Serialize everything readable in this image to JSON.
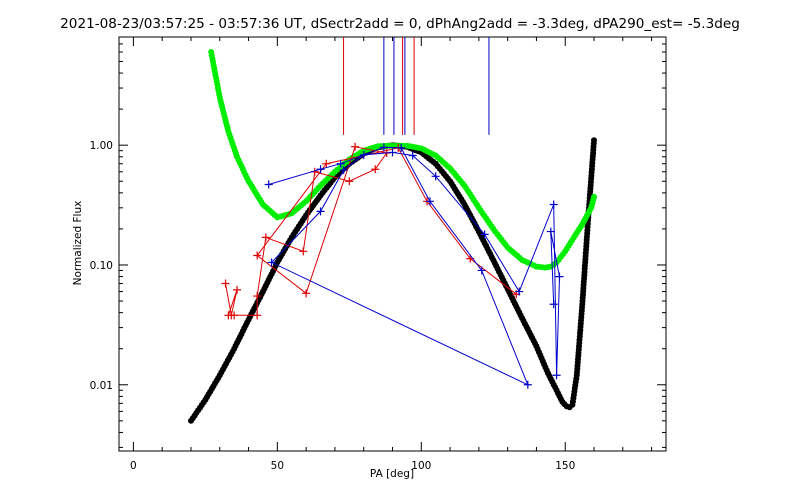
{
  "chart_data": {
    "type": "scatter",
    "title": "2021-08-23/03:57:25 - 03:57:36 UT, dSectr2add = 0, dPhAng2add = -3.3deg, dPA290_est= -5.3deg",
    "xlabel": "PA [deg]",
    "ylabel": "Normalized Flux",
    "x_ticks": [
      0,
      50,
      100,
      150
    ],
    "y_ticks": [
      0.01,
      0.1,
      1.0
    ],
    "y_tick_labels": [
      "0.01",
      "0.10",
      "1.00"
    ],
    "xlim": [
      -5,
      185
    ],
    "ylim": [
      0.0028,
      8
    ],
    "yscale": "log",
    "grid": false,
    "colors": {
      "black": "#000000",
      "green": "#00ee00",
      "red": "#dd0000",
      "blue": "#0000cc"
    },
    "series": [
      {
        "style": "thick-dots",
        "color": "#000000",
        "x": [
          20,
          25,
          30,
          35,
          40,
          45,
          50,
          55,
          60,
          65,
          70,
          75,
          80,
          85,
          90,
          95,
          100,
          105,
          110,
          115,
          120,
          125,
          130,
          135,
          140,
          144,
          147,
          149,
          150.5,
          151.5,
          152.5,
          154,
          156,
          158,
          160
        ],
        "y": [
          0.005,
          0.0075,
          0.012,
          0.02,
          0.035,
          0.06,
          0.105,
          0.17,
          0.26,
          0.38,
          0.54,
          0.7,
          0.85,
          0.96,
          1.0,
          0.97,
          0.87,
          0.7,
          0.5,
          0.32,
          0.19,
          0.11,
          0.063,
          0.036,
          0.021,
          0.0125,
          0.009,
          0.0072,
          0.0066,
          0.0065,
          0.0068,
          0.012,
          0.05,
          0.25,
          1.1
        ]
      },
      {
        "style": "thick-dots",
        "color": "#00ee00",
        "x": [
          27,
          30,
          33,
          36,
          40,
          45,
          50,
          55,
          60,
          65,
          70,
          75,
          80,
          85,
          90,
          95,
          100,
          105,
          110,
          115,
          120,
          125,
          130,
          135,
          140,
          143,
          145,
          147,
          150,
          153,
          156,
          159,
          160
        ],
        "y": [
          6,
          2.5,
          1.3,
          0.8,
          0.5,
          0.32,
          0.25,
          0.27,
          0.34,
          0.46,
          0.6,
          0.76,
          0.9,
          0.98,
          0.99,
          0.99,
          0.94,
          0.82,
          0.64,
          0.46,
          0.3,
          0.2,
          0.14,
          0.11,
          0.097,
          0.095,
          0.097,
          0.105,
          0.13,
          0.17,
          0.22,
          0.3,
          0.37
        ]
      },
      {
        "style": "plus-line",
        "color": "#dd0000",
        "x": [
          32,
          34,
          36,
          33,
          35,
          43,
          43,
          46,
          59,
          63,
          75,
          84,
          88,
          77,
          60,
          43,
          67,
          92,
          102,
          117,
          133
        ],
        "y": [
          0.07,
          0.038,
          0.062,
          0.038,
          0.038,
          0.038,
          0.055,
          0.17,
          0.13,
          0.6,
          0.5,
          0.63,
          0.86,
          0.97,
          0.058,
          0.12,
          0.7,
          0.95,
          0.34,
          0.113,
          0.057
        ]
      },
      {
        "style": "plus-line",
        "color": "#0000cc",
        "x": [
          47,
          65,
          72,
          87,
          93,
          103,
          121,
          137,
          48,
          65,
          73,
          80,
          90,
          97,
          105,
          122,
          134,
          146,
          147,
          148,
          145,
          146
        ],
        "y": [
          0.47,
          0.63,
          0.7,
          0.96,
          0.95,
          0.34,
          0.09,
          0.01,
          0.105,
          0.28,
          0.62,
          0.83,
          0.87,
          0.82,
          0.55,
          0.18,
          0.06,
          0.32,
          0.012,
          0.08,
          0.19,
          0.047
        ]
      }
    ],
    "vlines": [
      {
        "x": 73,
        "color": "#dd0000"
      },
      {
        "x": 87,
        "color": "#0000cc"
      },
      {
        "x": 90.5,
        "color": "#0000cc"
      },
      {
        "x": 93.5,
        "color": "#dd0000"
      },
      {
        "x": 94.3,
        "color": "#0000cc"
      },
      {
        "x": 97.5,
        "color": "#dd0000"
      },
      {
        "x": 123.5,
        "color": "#0000cc"
      }
    ],
    "vline_range": [
      1.22,
      8
    ]
  }
}
